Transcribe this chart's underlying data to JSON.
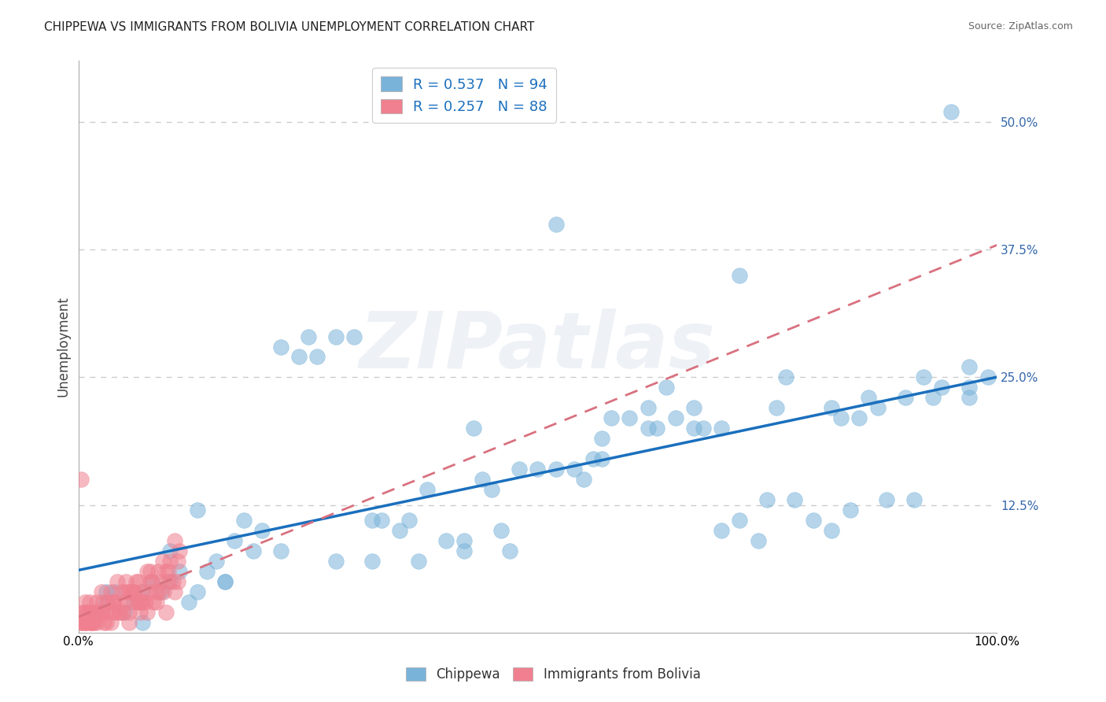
{
  "title": "CHIPPEWA VS IMMIGRANTS FROM BOLIVIA UNEMPLOYMENT CORRELATION CHART",
  "source": "Source: ZipAtlas.com",
  "xlabel": "",
  "ylabel": "Unemployment",
  "watermark": "ZIPatlas",
  "legend_entries": [
    {
      "label": "R = 0.537   N = 94",
      "color": "#aec6e8"
    },
    {
      "label": "R = 0.257   N = 88",
      "color": "#f4a7b9"
    }
  ],
  "bottom_legend": [
    "Chippewa",
    "Immigrants from Bolivia"
  ],
  "chippewa_color": "#7ab3d9",
  "bolivia_color": "#f08090",
  "blue_line_color": "#1a6fbd",
  "pink_line_color": "#d9717f",
  "chippewa_x": [
    0.02,
    0.03,
    0.04,
    0.05,
    0.06,
    0.07,
    0.08,
    0.09,
    0.1,
    0.11,
    0.12,
    0.13,
    0.14,
    0.15,
    0.16,
    0.17,
    0.18,
    0.2,
    0.22,
    0.24,
    0.25,
    0.26,
    0.28,
    0.3,
    0.32,
    0.33,
    0.35,
    0.36,
    0.38,
    0.4,
    0.42,
    0.44,
    0.45,
    0.46,
    0.48,
    0.5,
    0.52,
    0.54,
    0.55,
    0.56,
    0.58,
    0.6,
    0.62,
    0.63,
    0.64,
    0.65,
    0.67,
    0.68,
    0.7,
    0.72,
    0.74,
    0.75,
    0.76,
    0.78,
    0.8,
    0.82,
    0.84,
    0.85,
    0.86,
    0.88,
    0.9,
    0.92,
    0.94,
    0.95,
    0.97,
    0.99,
    0.03,
    0.07,
    0.1,
    0.13,
    0.16,
    0.19,
    0.22,
    0.28,
    0.32,
    0.37,
    0.42,
    0.47,
    0.52,
    0.57,
    0.62,
    0.67,
    0.72,
    0.77,
    0.82,
    0.87,
    0.93,
    0.97,
    0.43,
    0.57,
    0.7,
    0.83,
    0.91,
    0.97
  ],
  "chippewa_y": [
    0.02,
    0.03,
    0.04,
    0.02,
    0.03,
    0.01,
    0.05,
    0.04,
    0.08,
    0.06,
    0.03,
    0.04,
    0.06,
    0.07,
    0.05,
    0.09,
    0.11,
    0.1,
    0.28,
    0.27,
    0.29,
    0.27,
    0.29,
    0.29,
    0.11,
    0.11,
    0.1,
    0.11,
    0.14,
    0.09,
    0.09,
    0.15,
    0.14,
    0.1,
    0.16,
    0.16,
    0.4,
    0.16,
    0.15,
    0.17,
    0.21,
    0.21,
    0.22,
    0.2,
    0.24,
    0.21,
    0.22,
    0.2,
    0.1,
    0.11,
    0.09,
    0.13,
    0.22,
    0.13,
    0.11,
    0.1,
    0.12,
    0.21,
    0.23,
    0.13,
    0.23,
    0.25,
    0.24,
    0.51,
    0.26,
    0.25,
    0.04,
    0.04,
    0.05,
    0.12,
    0.05,
    0.08,
    0.08,
    0.07,
    0.07,
    0.07,
    0.08,
    0.08,
    0.16,
    0.17,
    0.2,
    0.2,
    0.35,
    0.25,
    0.22,
    0.22,
    0.23,
    0.24,
    0.2,
    0.19,
    0.2,
    0.21,
    0.13,
    0.23
  ],
  "bolivia_x": [
    0.005,
    0.008,
    0.01,
    0.012,
    0.015,
    0.017,
    0.02,
    0.022,
    0.025,
    0.027,
    0.03,
    0.032,
    0.035,
    0.037,
    0.04,
    0.042,
    0.045,
    0.047,
    0.05,
    0.052,
    0.055,
    0.057,
    0.06,
    0.063,
    0.065,
    0.067,
    0.07,
    0.073,
    0.075,
    0.077,
    0.08,
    0.082,
    0.085,
    0.087,
    0.09,
    0.093,
    0.095,
    0.097,
    0.1,
    0.103,
    0.105,
    0.108,
    0.11,
    0.013,
    0.025,
    0.038,
    0.052,
    0.065,
    0.078,
    0.092,
    0.105,
    0.015,
    0.03,
    0.055,
    0.07,
    0.04,
    0.06,
    0.02,
    0.008,
    0.018,
    0.028,
    0.038,
    0.048,
    0.058,
    0.068,
    0.078,
    0.088,
    0.098,
    0.108,
    0.005,
    0.015,
    0.025,
    0.035,
    0.045,
    0.055,
    0.065,
    0.075,
    0.085,
    0.095,
    0.002,
    0.004,
    0.006,
    0.008,
    0.01,
    0.012,
    0.014,
    0.003,
    0.007
  ],
  "bolivia_y": [
    0.02,
    0.01,
    0.02,
    0.03,
    0.02,
    0.01,
    0.03,
    0.02,
    0.04,
    0.03,
    0.02,
    0.03,
    0.04,
    0.02,
    0.03,
    0.05,
    0.02,
    0.04,
    0.03,
    0.05,
    0.04,
    0.03,
    0.04,
    0.05,
    0.03,
    0.02,
    0.04,
    0.03,
    0.06,
    0.04,
    0.05,
    0.03,
    0.04,
    0.06,
    0.05,
    0.04,
    0.06,
    0.05,
    0.07,
    0.05,
    0.04,
    0.07,
    0.08,
    0.01,
    0.02,
    0.03,
    0.04,
    0.05,
    0.06,
    0.07,
    0.09,
    0.01,
    0.01,
    0.02,
    0.03,
    0.02,
    0.04,
    0.01,
    0.01,
    0.02,
    0.01,
    0.03,
    0.02,
    0.04,
    0.03,
    0.05,
    0.04,
    0.06,
    0.05,
    0.01,
    0.01,
    0.02,
    0.01,
    0.02,
    0.01,
    0.03,
    0.02,
    0.03,
    0.02,
    0.01,
    0.01,
    0.02,
    0.01,
    0.02,
    0.01,
    0.02,
    0.15,
    0.03
  ],
  "xlim": [
    0.0,
    1.0
  ],
  "ylim": [
    0.0,
    0.56
  ],
  "yticks": [
    0.0,
    0.125,
    0.25,
    0.375,
    0.5
  ],
  "ytick_labels": [
    "",
    "12.5%",
    "25.0%",
    "37.5%",
    "50.0%"
  ],
  "xticks": [
    0.0,
    1.0
  ],
  "xtick_labels": [
    "0.0%",
    "100.0%"
  ],
  "grid_color": "#cccccc",
  "bg_color": "#ffffff",
  "title_fontsize": 11,
  "source_fontsize": 9,
  "chippewa_r": 0.537,
  "bolivia_r": 0.257,
  "chippewa_n": 94,
  "bolivia_n": 88
}
